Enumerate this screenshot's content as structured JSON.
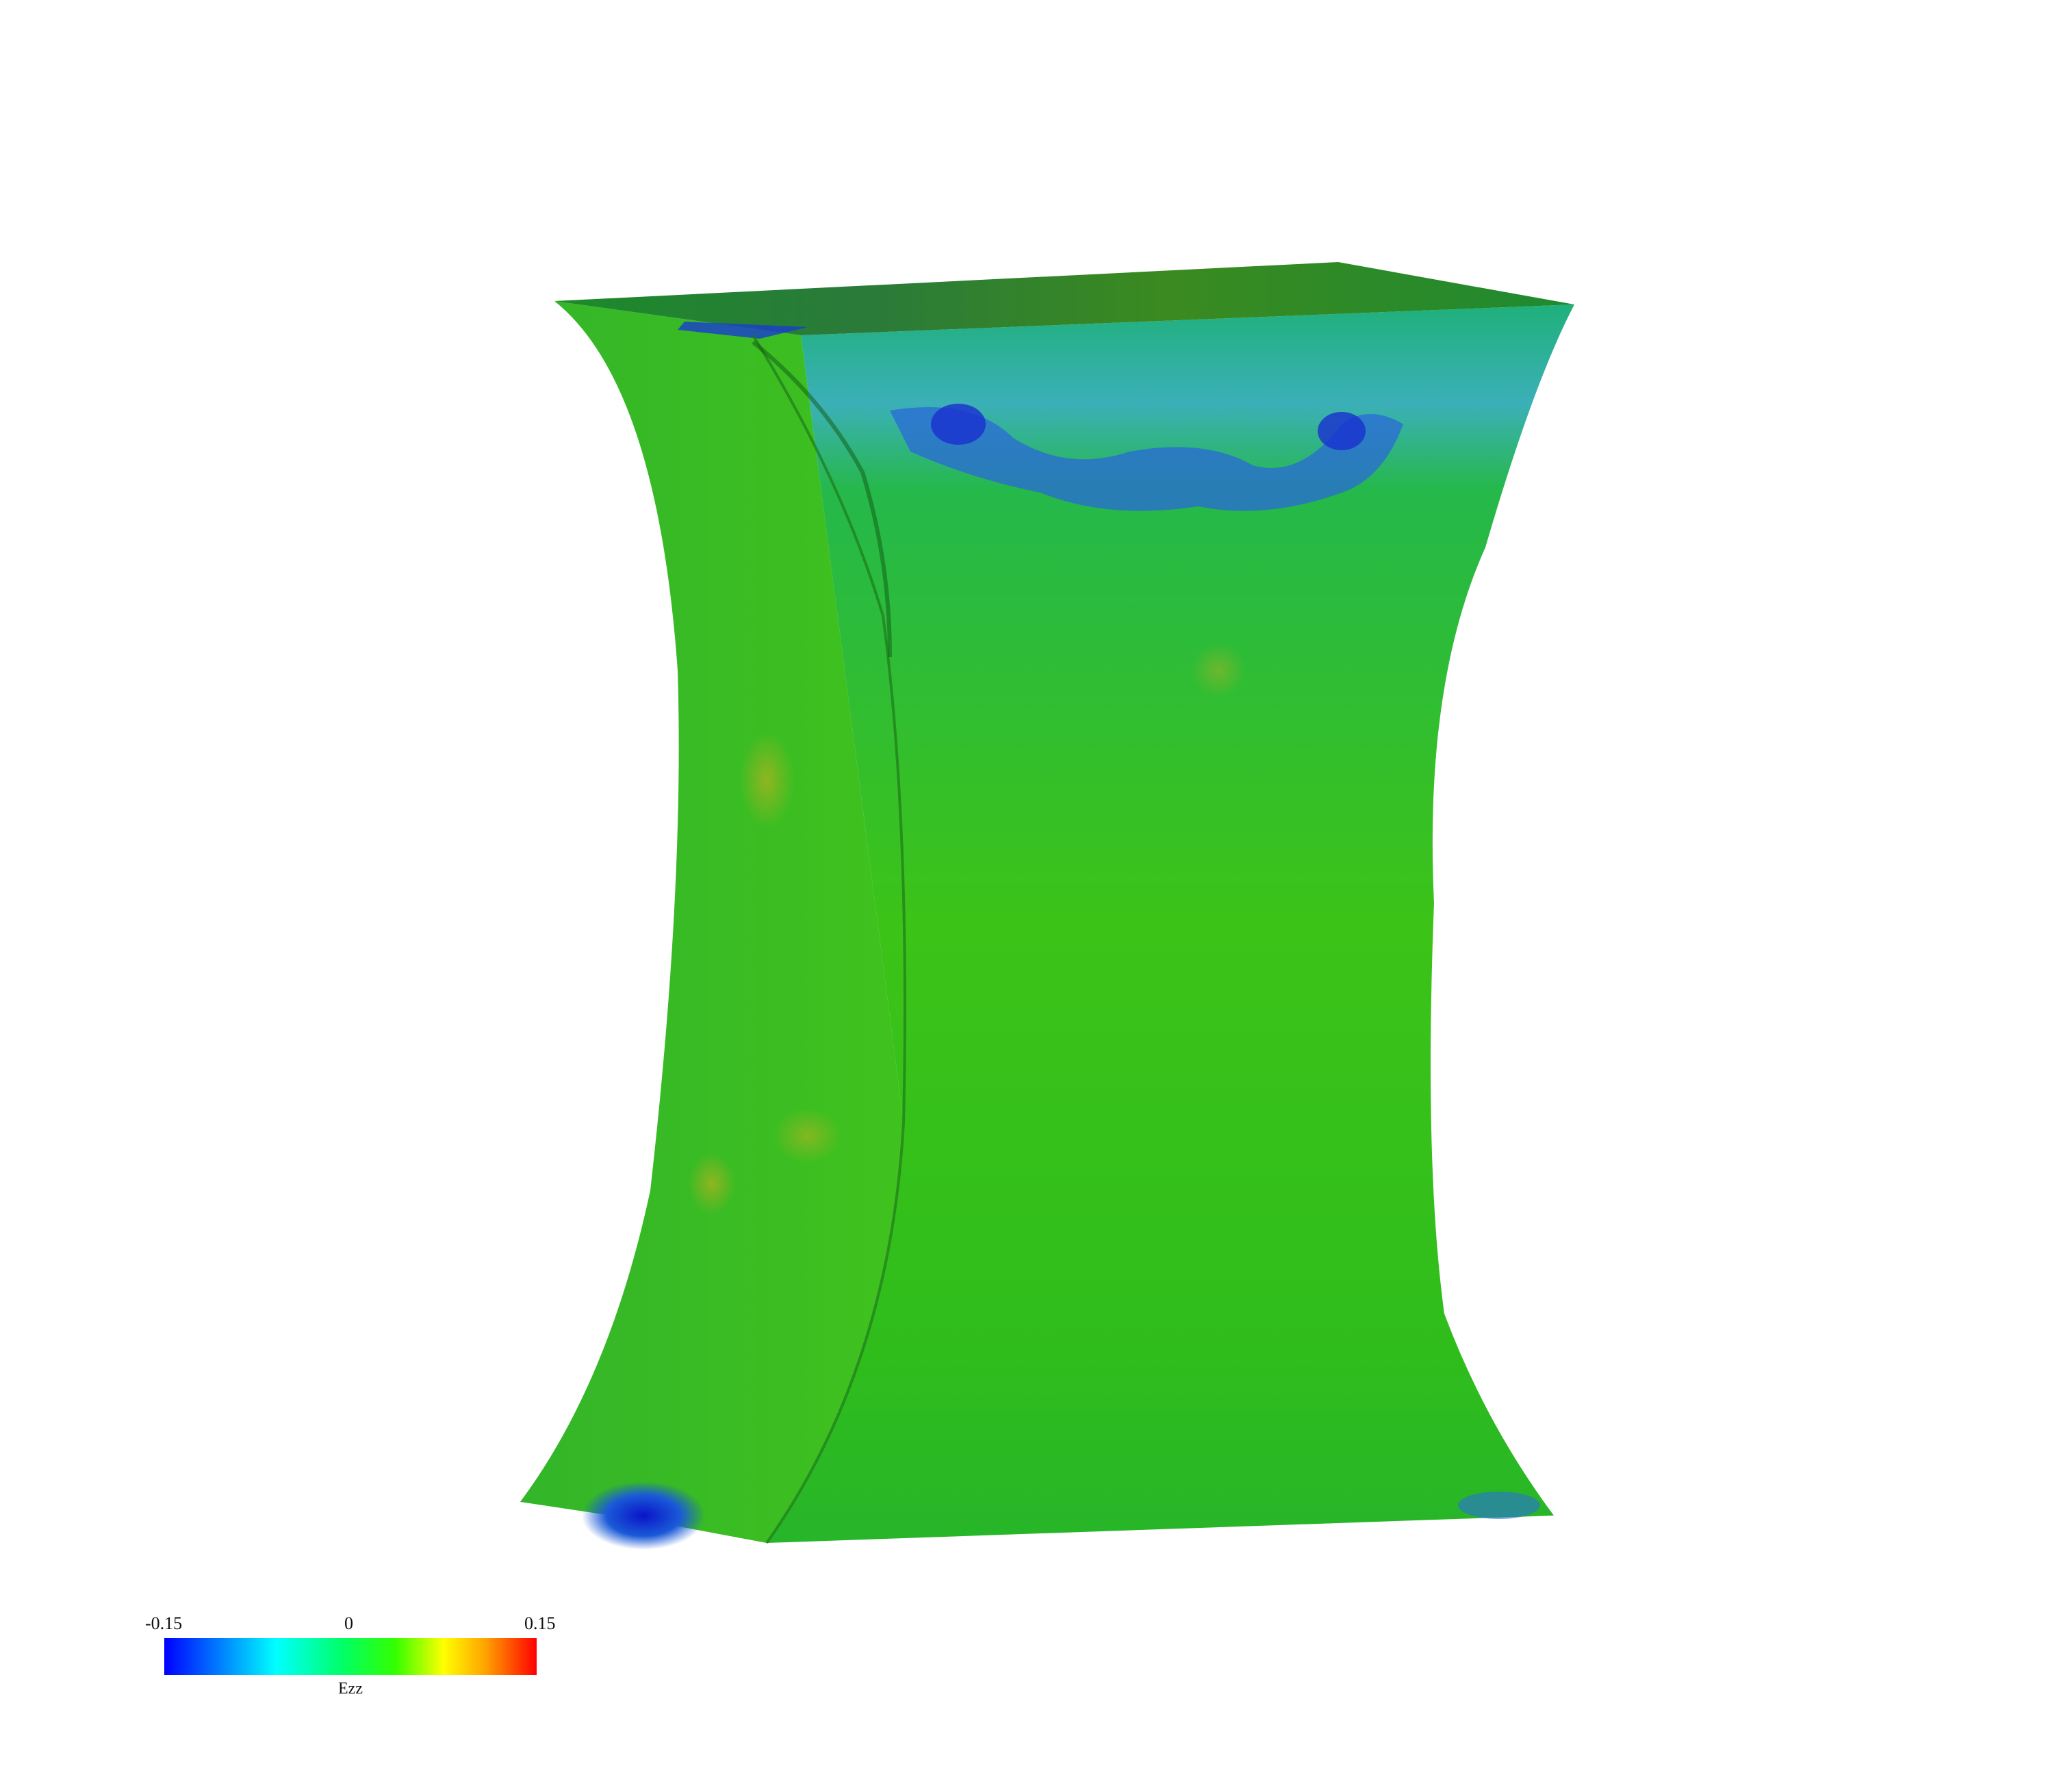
{
  "colorbar": {
    "min_label": "-0.15",
    "mid_label": "0",
    "max_label": "0.15",
    "title": "Ezz",
    "colors": [
      "#0000ff",
      "#00ffff",
      "#00ff66",
      "#33ff00",
      "#ffff00",
      "#ffa500",
      "#ff0000"
    ]
  },
  "scene": {
    "background": "#ffffff",
    "object": "deformed-mesh-specimen",
    "dominant_color": "#2fbf1a",
    "low_strain_color": "#1a3cff"
  }
}
